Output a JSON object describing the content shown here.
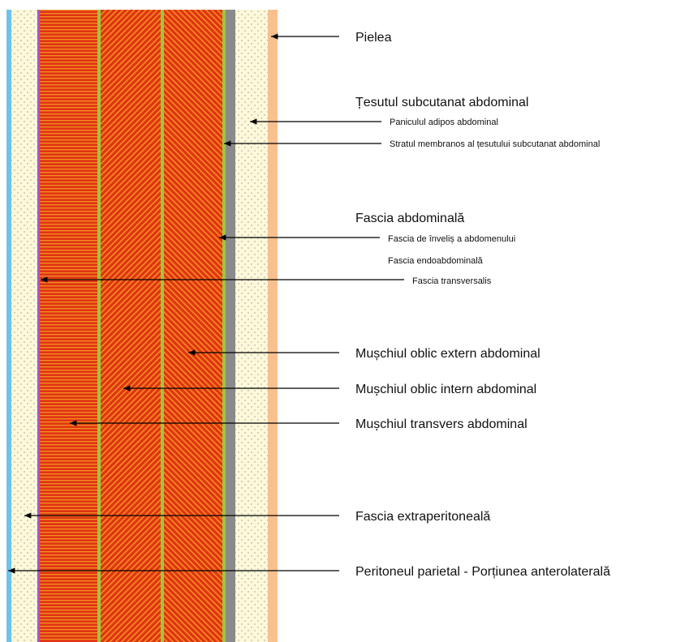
{
  "labels": [
    "Pielea",
    "Țesutul subcutanat abdominal",
    "Paniculul adipos abdominal",
    "Stratul membranos al țesutului subcutanat abdominal",
    "Fascia abdominală",
    "Fascia de înveliș a abdomenului",
    "Fascia endoabdominală",
    "Fascia transversalis",
    "Mușchiul oblic extern abdominal",
    "Mușchiul oblic intern abdominal",
    "Mușchiul transvers abdominal",
    "Fascia extraperitoneală",
    "Peritoneul parietal - Porțiunea anterolaterală"
  ]
}
